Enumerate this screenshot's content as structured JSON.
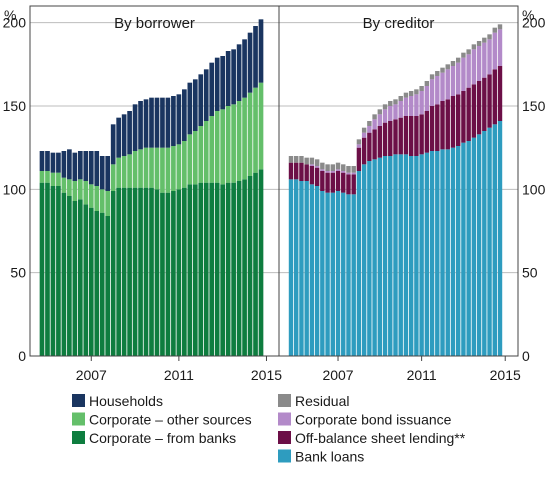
{
  "chart_data": {
    "type": "bar",
    "stacked": true,
    "title": "",
    "y_unit": "%",
    "ylim": [
      0,
      210
    ],
    "yticks": [
      0,
      50,
      100,
      150,
      200
    ],
    "x_start": 2004.75,
    "x_step": 0.25,
    "xticks": [
      2007,
      2011,
      2015
    ],
    "grid": true,
    "panels": [
      {
        "title": "By borrower",
        "series": [
          {
            "name": "Corporate – from banks",
            "color": "#0e7d3f",
            "values": [
              104,
              104,
              102,
              102,
              98,
              96,
              93,
              94,
              91,
              89,
              87,
              86,
              84,
              99,
              101,
              101,
              101,
              101,
              101,
              101,
              101,
              100,
              98,
              98,
              99,
              100,
              101,
              103,
              103,
              104,
              104,
              104,
              104,
              103,
              104,
              104,
              105,
              106,
              108,
              110,
              112
            ]
          },
          {
            "name": "Corporate – other sources",
            "color": "#64bf6a",
            "values": [
              7,
              7,
              8,
              8,
              9,
              10,
              12,
              12,
              14,
              14,
              15,
              14,
              15,
              16,
              18,
              19,
              20,
              22,
              23,
              24,
              24,
              25,
              27,
              27,
              27,
              27,
              28,
              30,
              32,
              34,
              37,
              40,
              43,
              45,
              46,
              47,
              48,
              49,
              50,
              51,
              52
            ]
          },
          {
            "name": "Households",
            "color": "#1a3560",
            "values": [
              12,
              12,
              12,
              12,
              16,
              18,
              17,
              17,
              18,
              20,
              21,
              20,
              21,
              24,
              24,
              25,
              26,
              28,
              29,
              29,
              30,
              30,
              30,
              30,
              30,
              30,
              31,
              31,
              31,
              31,
              31,
              32,
              32,
              32,
              33,
              33,
              34,
              35,
              36,
              37,
              38
            ]
          }
        ]
      },
      {
        "title": "By creditor",
        "series": [
          {
            "name": "Bank loans",
            "color": "#2e9cbf",
            "values": [
              106,
              106,
              105,
              105,
              103,
              102,
              99,
              98,
              98,
              99,
              98,
              97,
              97,
              111,
              115,
              117,
              118,
              119,
              120,
              120,
              121,
              121,
              121,
              120,
              120,
              121,
              122,
              123,
              123,
              124,
              124,
              125,
              126,
              128,
              129,
              131,
              133,
              135,
              137,
              139,
              141
            ]
          },
          {
            "name": "Off-balance sheet lending**",
            "color": "#6c0f47",
            "values": [
              10,
              10,
              11,
              10,
              11,
              11,
              12,
              12,
              12,
              12,
              12,
              12,
              12,
              14,
              16,
              17,
              18,
              19,
              20,
              21,
              21,
              22,
              23,
              24,
              24,
              24,
              25,
              27,
              28,
              29,
              30,
              31,
              31,
              31,
              32,
              32,
              32,
              32,
              32,
              33,
              33
            ]
          },
          {
            "name": "Corporate bond issuance",
            "color": "#b38ac9",
            "values": [
              0,
              0,
              0,
              0,
              1,
              1,
              1,
              1,
              1,
              1,
              1,
              1,
              1,
              2,
              3,
              4,
              6,
              7,
              8,
              9,
              9,
              10,
              11,
              12,
              13,
              14,
              15,
              16,
              17,
              17,
              18,
              18,
              19,
              20,
              20,
              21,
              21,
              21,
              21,
              22,
              22
            ]
          },
          {
            "name": "Residual",
            "color": "#8a8a8a",
            "values": [
              4,
              4,
              4,
              4,
              4,
              4,
              4,
              4,
              4,
              4,
              4,
              4,
              4,
              3,
              3,
              3,
              3,
              3,
              3,
              3,
              3,
              3,
              3,
              3,
              3,
              3,
              3,
              3,
              3,
              3,
              3,
              3,
              3,
              3,
              3,
              3,
              3,
              3,
              3,
              3,
              3
            ]
          }
        ]
      }
    ],
    "legend": {
      "placement": "bottom",
      "left": [
        "Households",
        "Corporate – other sources",
        "Corporate – from banks"
      ],
      "right": [
        "Residual",
        "Corporate bond issuance",
        "Off-balance sheet lending**",
        "Bank loans"
      ]
    }
  }
}
